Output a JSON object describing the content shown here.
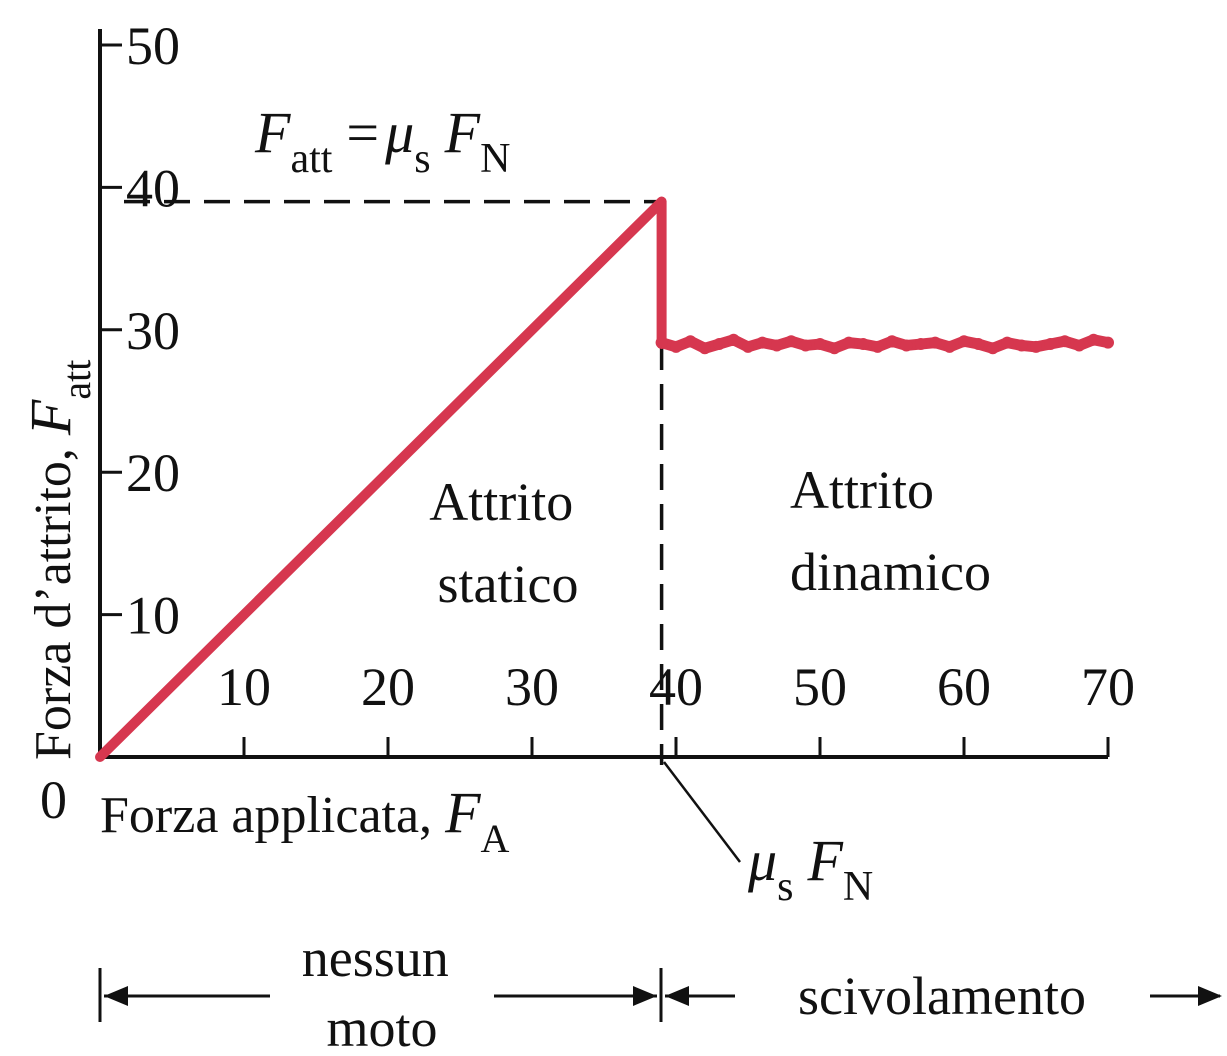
{
  "chart_data": {
    "type": "line",
    "xlabel": {
      "text": "Forza applicata, ",
      "var": "F",
      "sub": "A"
    },
    "ylabel": {
      "text": "Forza d’attrito, ",
      "var": "F",
      "sub": "att"
    },
    "origin_label": "0",
    "x_ticks": [
      10,
      20,
      30,
      40,
      50,
      60,
      70
    ],
    "y_ticks": [
      10,
      20,
      30,
      40,
      50
    ],
    "xlim": [
      0,
      70
    ],
    "ylim": [
      0,
      50
    ],
    "grid": false,
    "static_segment": {
      "x": [
        0,
        39
      ],
      "y": [
        0,
        39
      ]
    },
    "drop_segment": {
      "x": [
        39,
        39
      ],
      "y": [
        39,
        29
      ]
    },
    "kinetic_series": {
      "x": [
        39,
        40,
        41,
        42,
        43,
        44,
        45,
        46,
        47,
        48,
        49,
        50,
        51,
        52,
        53,
        54,
        55,
        56,
        57,
        58,
        59,
        60,
        61,
        62,
        63,
        64,
        65,
        66,
        67,
        68,
        69,
        70
      ],
      "y": [
        29.1,
        28.8,
        29.2,
        28.7,
        29.0,
        29.3,
        28.8,
        29.1,
        28.9,
        29.2,
        28.9,
        29.0,
        28.7,
        29.1,
        29.0,
        28.8,
        29.2,
        28.9,
        29.0,
        29.1,
        28.8,
        29.2,
        29.0,
        28.7,
        29.1,
        28.9,
        28.8,
        29.0,
        29.2,
        28.9,
        29.3,
        29.1
      ]
    },
    "max_static_level": 39,
    "threshold_x": 39,
    "annotations": {
      "static_max_formula": {
        "lhs_var": "F",
        "lhs_sub": "att",
        "eq": "=",
        "mu": "μ",
        "mu_sub": "s",
        "rhs_var": "F",
        "rhs_sub": "N"
      },
      "threshold_label": {
        "mu": "μ",
        "mu_sub": "s",
        "var": "F",
        "sub": "N"
      },
      "static_region": [
        "Attrito",
        "statico"
      ],
      "kinetic_region": [
        "Attrito",
        "dinamico"
      ],
      "no_motion": [
        "nessun",
        "moto"
      ],
      "sliding": "scivolamento"
    },
    "colors": {
      "line": "#d6374f",
      "axis": "#111111"
    }
  }
}
